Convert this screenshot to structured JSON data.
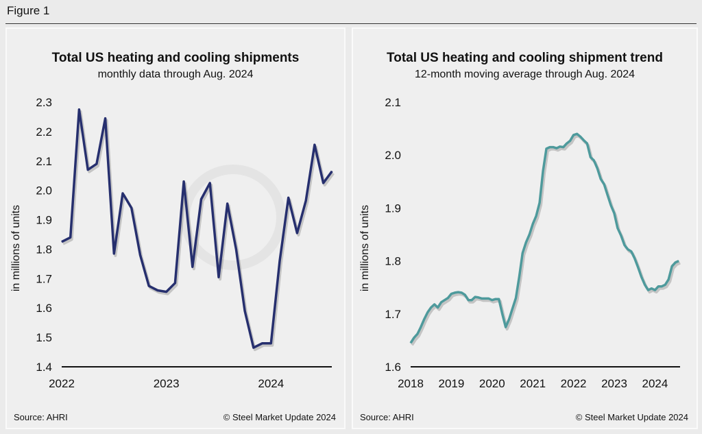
{
  "figure_label": "Figure 1",
  "watermark": "Steel Market Update",
  "chart_data": [
    {
      "type": "line",
      "title": "Total US heating and cooling shipments",
      "subtitle": "monthly data through Aug. 2024",
      "ylabel": "in millions of units",
      "xlabel": "",
      "ylim": [
        1.4,
        2.3
      ],
      "yticks": [
        "1.4",
        "1.5",
        "1.6",
        "1.7",
        "1.8",
        "1.9",
        "2.0",
        "2.1",
        "2.2",
        "2.3"
      ],
      "xticks": [
        "2022",
        "2023",
        "2024"
      ],
      "x_start": "2022-01",
      "x_end": "2024-08",
      "grid": false,
      "color": "#262f6e",
      "source": "Source: AHRI",
      "copyright": "© Steel Market Update 2024",
      "values": [
        1.825,
        1.84,
        2.275,
        2.07,
        2.09,
        2.245,
        1.785,
        1.99,
        1.94,
        1.78,
        1.675,
        1.66,
        1.655,
        1.685,
        2.03,
        1.74,
        1.97,
        2.025,
        1.705,
        1.955,
        1.8,
        1.59,
        1.465,
        1.48,
        1.48,
        1.76,
        1.975,
        1.855,
        1.965,
        2.155,
        2.025,
        2.065
      ]
    },
    {
      "type": "line",
      "title": "Total US heating and cooling shipment trend",
      "subtitle": "12-month moving average through Aug. 2024",
      "ylabel": "in millions of units",
      "xlabel": "",
      "ylim": [
        1.6,
        2.1
      ],
      "yticks": [
        "1.6",
        "1.7",
        "1.8",
        "1.9",
        "2.0",
        "2.1"
      ],
      "xticks": [
        "2018",
        "2019",
        "2020",
        "2021",
        "2022",
        "2023",
        "2024"
      ],
      "x_start": "2018-01",
      "x_end": "2024-08",
      "grid": false,
      "color": "#4e9a9c",
      "source": "Source: AHRI",
      "copyright": "© Steel Market Update 2024",
      "values": [
        1.645,
        1.655,
        1.662,
        1.675,
        1.69,
        1.703,
        1.712,
        1.718,
        1.712,
        1.722,
        1.726,
        1.73,
        1.738,
        1.74,
        1.741,
        1.74,
        1.736,
        1.726,
        1.726,
        1.732,
        1.731,
        1.729,
        1.729,
        1.729,
        1.726,
        1.728,
        1.728,
        1.7,
        1.675,
        1.69,
        1.71,
        1.73,
        1.77,
        1.815,
        1.835,
        1.85,
        1.87,
        1.885,
        1.91,
        1.97,
        2.012,
        2.015,
        2.015,
        2.013,
        2.016,
        2.015,
        2.022,
        2.027,
        2.038,
        2.04,
        2.035,
        2.028,
        2.022,
        1.996,
        1.99,
        1.975,
        1.955,
        1.945,
        1.925,
        1.905,
        1.89,
        1.862,
        1.848,
        1.83,
        1.822,
        1.818,
        1.805,
        1.788,
        1.77,
        1.755,
        1.745,
        1.748,
        1.745,
        1.752,
        1.752,
        1.755,
        1.765,
        1.79,
        1.797,
        1.8
      ]
    }
  ]
}
